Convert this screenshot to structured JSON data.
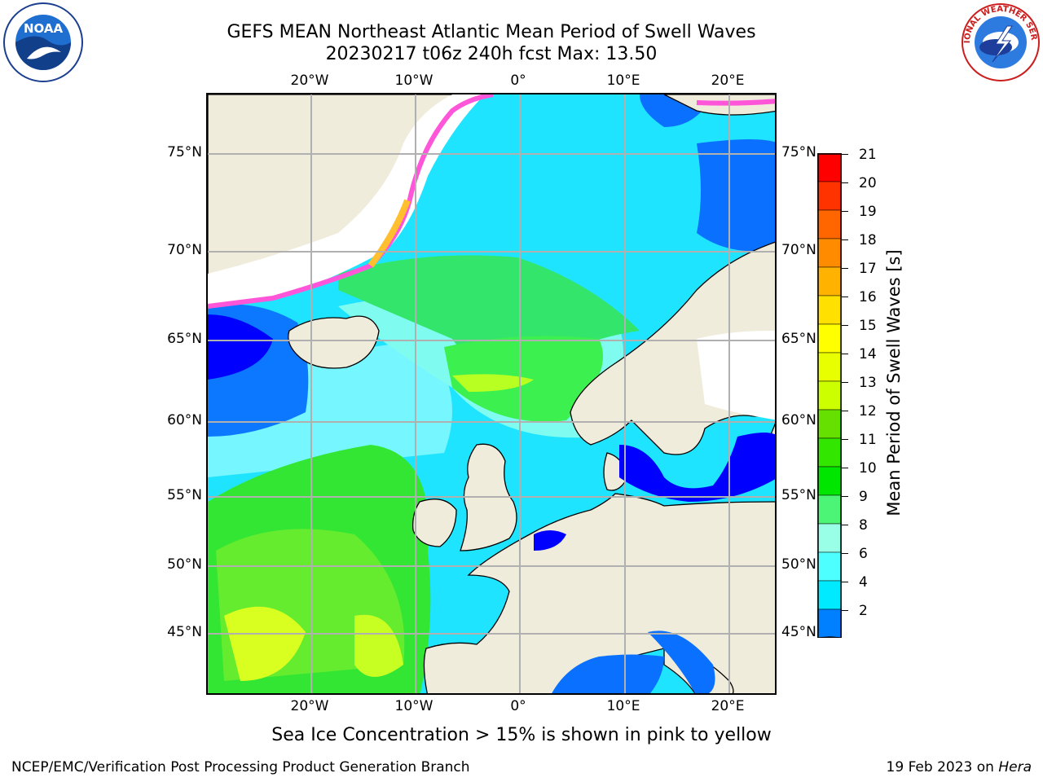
{
  "title": {
    "line1": "GEFS MEAN Northeast Atlantic Mean Period of Swell Waves",
    "line2": "20230217 t06z 240h fcst   Max: 13.50"
  },
  "map": {
    "lon_labels": [
      "20°W",
      "10°W",
      "0°",
      "10°E",
      "20°E"
    ],
    "lat_labels": [
      "75°N",
      "70°N",
      "65°N",
      "60°N",
      "55°N",
      "50°N",
      "45°N"
    ],
    "land_color": "#efecdc",
    "sea_ice_color": "#ffffff",
    "grid_color": "#b0b0b0"
  },
  "colorbar": {
    "label": "Mean Period of Swell Waves [s]",
    "ticks": [
      "21",
      "20",
      "19",
      "18",
      "17",
      "16",
      "15",
      "14",
      "13",
      "12",
      "11",
      "10",
      "9",
      "8",
      "6",
      "4",
      "2"
    ],
    "colors_top_to_bottom": [
      "#ff0000",
      "#ff3300",
      "#ff6600",
      "#ff8c00",
      "#ffb300",
      "#ffe000",
      "#ffff00",
      "#e8ff00",
      "#ccff00",
      "#66e000",
      "#33e600",
      "#00e600",
      "#4cf575",
      "#99ffe6",
      "#4dffff",
      "#00eaff",
      "#007fff",
      "#0000ff"
    ]
  },
  "subtitle": "Sea Ice Concentration > 15% is shown in pink to yellow",
  "footer": {
    "left": "NCEP/EMC/Verification Post Processing Product Generation Branch",
    "right_date": "19 Feb 2023 on ",
    "right_host": "Hera"
  },
  "logos": {
    "noaa_text": "NOAA",
    "nws_text": "NATIONAL WEATHER SERVICE"
  }
}
